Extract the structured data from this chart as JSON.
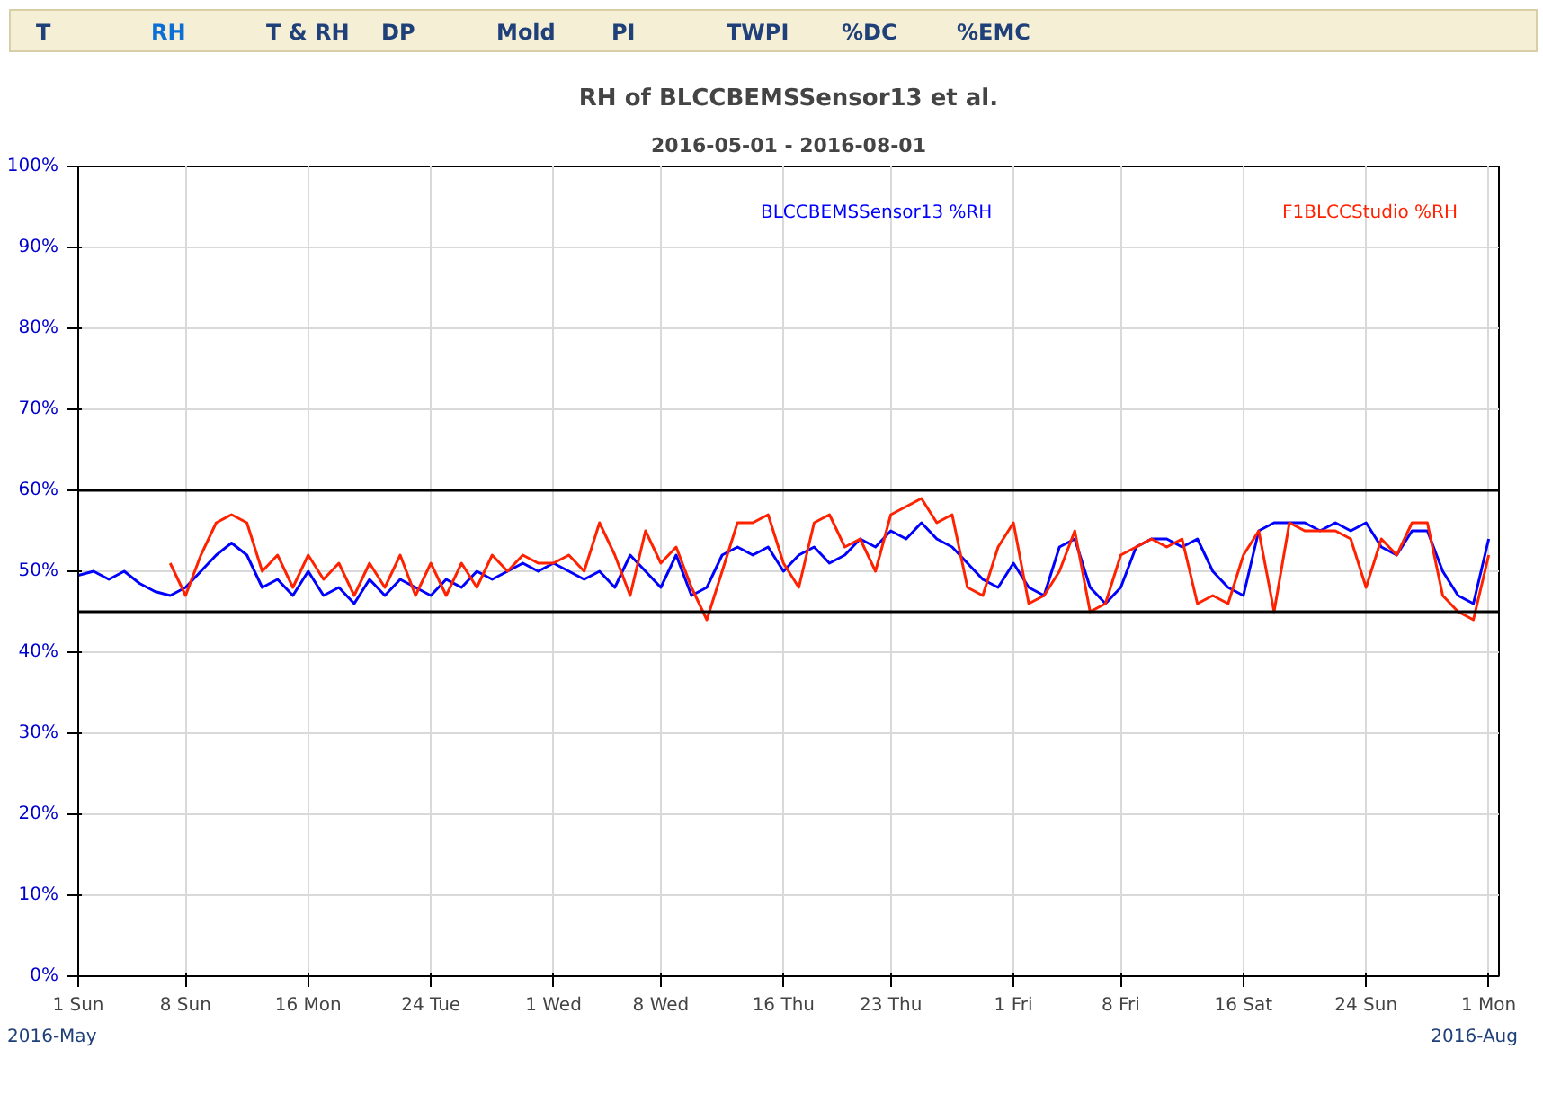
{
  "chart_data": {
    "type": "line",
    "title": "RH of BLCCBEMSSensor13 et al.",
    "subtitle": "2016-05-01 - 2016-08-01",
    "annotations": [
      "T",
      "RH",
      "T & RH",
      "DP",
      "Mold",
      "PI",
      "TWPI",
      "%DC",
      "%EMC",
      "2016-May",
      "2016-Aug"
    ],
    "x": [
      "2016-05-01",
      "2016-05-02",
      "2016-05-03",
      "2016-05-04",
      "2016-05-05",
      "2016-05-06",
      "2016-05-07",
      "2016-05-08",
      "2016-05-09",
      "2016-05-10",
      "2016-05-11",
      "2016-05-12",
      "2016-05-13",
      "2016-05-14",
      "2016-05-15",
      "2016-05-16",
      "2016-05-17",
      "2016-05-18",
      "2016-05-19",
      "2016-05-20",
      "2016-05-21",
      "2016-05-22",
      "2016-05-23",
      "2016-05-24",
      "2016-05-25",
      "2016-05-26",
      "2016-05-27",
      "2016-05-28",
      "2016-05-29",
      "2016-05-30",
      "2016-05-31",
      "2016-06-01",
      "2016-06-02",
      "2016-06-03",
      "2016-06-04",
      "2016-06-05",
      "2016-06-06",
      "2016-06-07",
      "2016-06-08",
      "2016-06-09",
      "2016-06-10",
      "2016-06-11",
      "2016-06-12",
      "2016-06-13",
      "2016-06-14",
      "2016-06-15",
      "2016-06-16",
      "2016-06-17",
      "2016-06-18",
      "2016-06-19",
      "2016-06-20",
      "2016-06-21",
      "2016-06-22",
      "2016-06-23",
      "2016-06-24",
      "2016-06-25",
      "2016-06-26",
      "2016-06-27",
      "2016-06-28",
      "2016-06-29",
      "2016-06-30",
      "2016-07-01",
      "2016-07-02",
      "2016-07-03",
      "2016-07-04",
      "2016-07-05",
      "2016-07-06",
      "2016-07-07",
      "2016-07-08",
      "2016-07-09",
      "2016-07-10",
      "2016-07-11",
      "2016-07-12",
      "2016-07-13",
      "2016-07-14",
      "2016-07-15",
      "2016-07-16",
      "2016-07-17",
      "2016-07-18",
      "2016-07-19",
      "2016-07-20",
      "2016-07-21",
      "2016-07-22",
      "2016-07-23",
      "2016-07-24",
      "2016-07-25",
      "2016-07-26",
      "2016-07-27",
      "2016-07-28",
      "2016-07-29",
      "2016-07-30",
      "2016-07-31",
      "2016-08-01"
    ],
    "series": [
      {
        "name": "BLCCBEMSSensor13 %RH",
        "color": "#0000ff",
        "values": [
          49.5,
          50,
          49,
          50,
          48.5,
          47.5,
          47,
          48,
          50,
          52,
          53.5,
          52,
          48,
          49,
          47,
          50,
          47,
          48,
          46,
          49,
          47,
          49,
          48,
          47,
          49,
          48,
          50,
          49,
          50,
          51,
          50,
          51,
          50,
          49,
          50,
          48,
          52,
          50,
          48,
          52,
          47,
          48,
          52,
          53,
          52,
          53,
          50,
          52,
          53,
          51,
          52,
          54,
          53,
          55,
          54,
          56,
          54,
          53,
          51,
          49,
          48,
          51,
          48,
          47,
          53,
          54,
          48,
          46,
          48,
          53,
          54,
          54,
          53,
          54,
          50,
          48,
          47,
          55,
          56,
          56,
          56,
          55,
          56,
          55,
          56,
          53,
          52,
          55,
          55,
          50,
          47,
          46,
          54
        ]
      },
      {
        "name": "F1BLCCStudio %RH",
        "color": "#ff2200",
        "values": [
          null,
          null,
          null,
          null,
          null,
          null,
          51,
          47,
          52,
          56,
          57,
          56,
          50,
          52,
          48,
          52,
          49,
          51,
          47,
          51,
          48,
          52,
          47,
          51,
          47,
          51,
          48,
          52,
          50,
          52,
          51,
          51,
          52,
          50,
          56,
          52,
          47,
          55,
          51,
          53,
          48,
          44,
          50,
          56,
          56,
          57,
          51,
          48,
          56,
          57,
          53,
          54,
          50,
          57,
          58,
          59,
          56,
          57,
          48,
          47,
          53,
          56,
          46,
          47,
          50,
          55,
          45,
          46,
          52,
          53,
          54,
          53,
          54,
          46,
          47,
          46,
          52,
          55,
          45,
          56,
          55,
          55,
          55,
          54,
          48,
          54,
          52,
          56,
          56,
          47,
          45,
          44,
          52
        ]
      }
    ],
    "xlim": [
      "2016-05-01",
      "2016-08-01T16:00"
    ],
    "xticks": [
      {
        "value": "2016-05-01",
        "label": "1 Sun"
      },
      {
        "value": "2016-05-08",
        "label": "8 Sun"
      },
      {
        "value": "2016-05-16",
        "label": "16 Mon"
      },
      {
        "value": "2016-05-24",
        "label": "24 Tue"
      },
      {
        "value": "2016-06-01",
        "label": "1 Wed"
      },
      {
        "value": "2016-06-08",
        "label": "8 Wed"
      },
      {
        "value": "2016-06-16",
        "label": "16 Thu"
      },
      {
        "value": "2016-06-23",
        "label": "23 Thu"
      },
      {
        "value": "2016-07-01",
        "label": "1 Fri"
      },
      {
        "value": "2016-07-08",
        "label": "8 Fri"
      },
      {
        "value": "2016-07-16",
        "label": "16 Sat"
      },
      {
        "value": "2016-07-24",
        "label": "24 Sun"
      },
      {
        "value": "2016-08-01",
        "label": "1 Mon"
      }
    ],
    "ylim": [
      0,
      100
    ],
    "yticks": [
      {
        "value": 0,
        "label": "0%"
      },
      {
        "value": 10,
        "label": "10%"
      },
      {
        "value": 20,
        "label": "20%"
      },
      {
        "value": 30,
        "label": "30%"
      },
      {
        "value": 40,
        "label": "40%"
      },
      {
        "value": 50,
        "label": "50%"
      },
      {
        "value": 60,
        "label": "60%"
      },
      {
        "value": 70,
        "label": "70%"
      },
      {
        "value": 80,
        "label": "80%"
      },
      {
        "value": 90,
        "label": "90%"
      },
      {
        "value": 100,
        "label": "100%"
      }
    ],
    "ref_lines": [
      {
        "axis": "y",
        "value": 60,
        "color": "#000000"
      },
      {
        "axis": "y",
        "value": 45,
        "color": "#000000"
      }
    ],
    "grid": true,
    "legend": "top"
  }
}
